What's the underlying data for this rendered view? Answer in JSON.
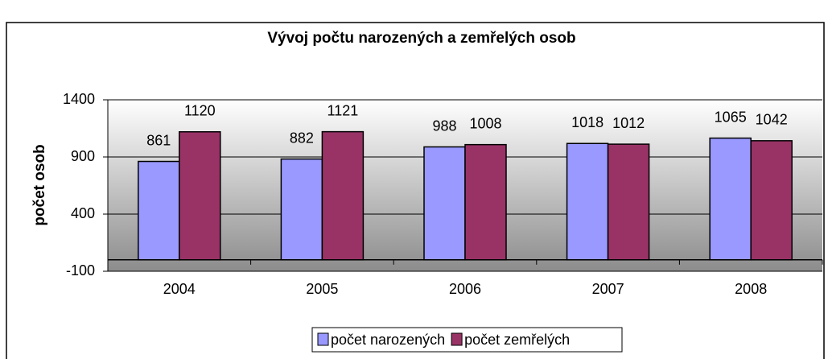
{
  "chart_data": {
    "type": "bar",
    "title": "Vývoj počtu narozených a zemřelých osob",
    "y_label": "počet osob",
    "categories": [
      "2004",
      "2005",
      "2006",
      "2007",
      "2008"
    ],
    "series": [
      {
        "name": "počet narozených",
        "color": "#9999ff",
        "values": [
          861,
          882,
          988,
          1018,
          1065
        ]
      },
      {
        "name": "počet zemřelých",
        "color": "#993366",
        "values": [
          1120,
          1121,
          1008,
          1012,
          1042
        ]
      }
    ],
    "ylim": [
      -100,
      1400
    ],
    "yticks": [
      -100,
      400,
      900,
      1400
    ],
    "grid": true,
    "legend": "bottom"
  }
}
